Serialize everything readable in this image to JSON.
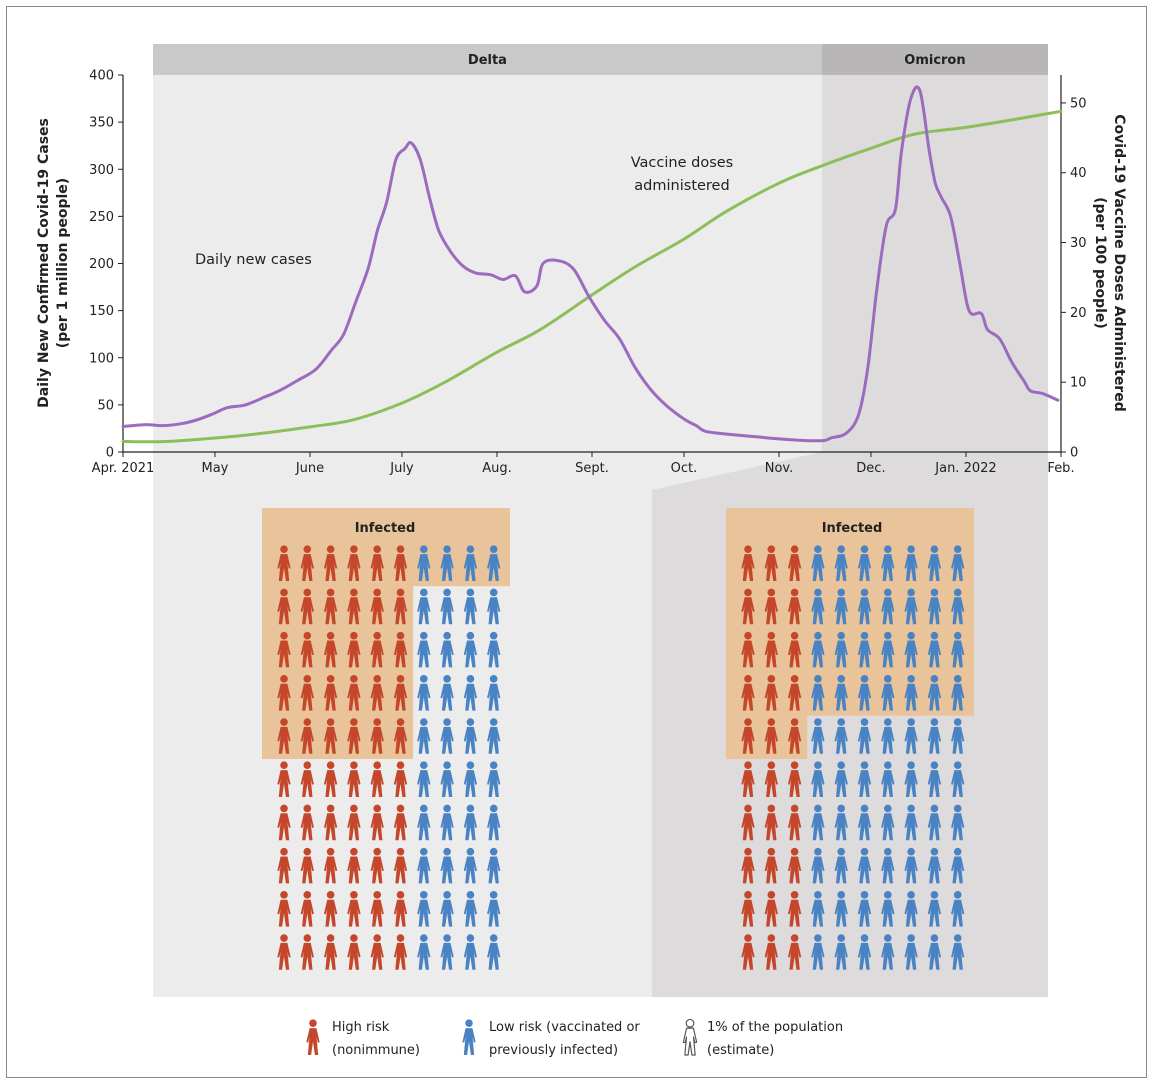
{
  "chart_data": {
    "type": "line",
    "title": "",
    "eras": [
      {
        "name": "Delta",
        "start": "2021-04-01",
        "end": "2021-11-15"
      },
      {
        "name": "Omicron",
        "start": "2021-11-15",
        "end": "2022-02-01"
      }
    ],
    "x_axis": {
      "type": "date",
      "range": [
        "2021-04-01",
        "2022-02-01"
      ],
      "tick_labels": [
        {
          "label": "Apr. 2021",
          "date": "2021-04-01"
        },
        {
          "label": "May",
          "date": "2021-05-01"
        },
        {
          "label": "June",
          "date": "2021-06-01"
        },
        {
          "label": "July",
          "date": "2021-07-01"
        },
        {
          "label": "Aug.",
          "date": "2021-08-01"
        },
        {
          "label": "Sept.",
          "date": "2021-09-01"
        },
        {
          "label": "Oct.",
          "date": "2021-10-01"
        },
        {
          "label": "Nov.",
          "date": "2021-11-01"
        },
        {
          "label": "Dec.",
          "date": "2021-12-01"
        },
        {
          "label": "Jan. 2022",
          "date": "2022-01-01"
        },
        {
          "label": "Feb.",
          "date": "2022-02-01"
        }
      ]
    },
    "y_left": {
      "label_line1": "Daily New Confirmed Covid-19 Cases",
      "label_line2": "(per 1 million people)",
      "ylim": [
        0,
        400
      ],
      "ticks": [
        0,
        50,
        100,
        150,
        200,
        250,
        300,
        350,
        400
      ]
    },
    "y_right": {
      "label_line1": "Covid-19 Vaccine Doses Administered",
      "label_line2": "(per 100 people)",
      "ylim": [
        0,
        54
      ],
      "ticks": [
        0,
        10,
        20,
        30,
        40,
        50
      ]
    },
    "series": [
      {
        "name": "Daily new cases",
        "axis": "left",
        "color": "#9b6bbf",
        "points": [
          [
            "2021-04-01",
            27
          ],
          [
            "2021-04-08",
            29
          ],
          [
            "2021-04-14",
            28
          ],
          [
            "2021-04-20",
            30
          ],
          [
            "2021-04-25",
            34
          ],
          [
            "2021-04-30",
            40
          ],
          [
            "2021-05-05",
            47
          ],
          [
            "2021-05-11",
            50
          ],
          [
            "2021-05-17",
            58
          ],
          [
            "2021-05-22",
            65
          ],
          [
            "2021-05-28",
            76
          ],
          [
            "2021-06-03",
            88
          ],
          [
            "2021-06-08",
            108
          ],
          [
            "2021-06-12",
            125
          ],
          [
            "2021-06-16",
            160
          ],
          [
            "2021-06-20",
            195
          ],
          [
            "2021-06-23",
            235
          ],
          [
            "2021-06-26",
            265
          ],
          [
            "2021-06-29",
            310
          ],
          [
            "2021-07-02",
            322
          ],
          [
            "2021-07-04",
            328
          ],
          [
            "2021-07-07",
            310
          ],
          [
            "2021-07-10",
            270
          ],
          [
            "2021-07-13",
            235
          ],
          [
            "2021-07-17",
            212
          ],
          [
            "2021-07-21",
            197
          ],
          [
            "2021-07-25",
            190
          ],
          [
            "2021-07-30",
            188
          ],
          [
            "2021-08-03",
            183
          ],
          [
            "2021-08-07",
            187
          ],
          [
            "2021-08-10",
            170
          ],
          [
            "2021-08-14",
            176
          ],
          [
            "2021-08-16",
            200
          ],
          [
            "2021-08-21",
            203
          ],
          [
            "2021-08-26",
            194
          ],
          [
            "2021-08-31",
            165
          ],
          [
            "2021-09-05",
            140
          ],
          [
            "2021-09-10",
            120
          ],
          [
            "2021-09-15",
            90
          ],
          [
            "2021-09-20",
            67
          ],
          [
            "2021-09-25",
            50
          ],
          [
            "2021-10-01",
            35
          ],
          [
            "2021-10-05",
            28
          ],
          [
            "2021-10-08",
            22
          ],
          [
            "2021-10-15",
            19
          ],
          [
            "2021-10-25",
            16
          ],
          [
            "2021-11-05",
            13
          ],
          [
            "2021-11-15",
            12
          ],
          [
            "2021-11-18",
            15
          ],
          [
            "2021-11-23",
            20
          ],
          [
            "2021-11-27",
            40
          ],
          [
            "2021-11-30",
            90
          ],
          [
            "2021-12-03",
            175
          ],
          [
            "2021-12-06",
            240
          ],
          [
            "2021-12-09",
            258
          ],
          [
            "2021-12-11",
            320
          ],
          [
            "2021-12-14",
            375
          ],
          [
            "2021-12-17",
            383
          ],
          [
            "2021-12-20",
            320
          ],
          [
            "2021-12-22",
            285
          ],
          [
            "2021-12-24",
            270
          ],
          [
            "2021-12-27",
            250
          ],
          [
            "2021-12-30",
            200
          ],
          [
            "2022-01-02",
            150
          ],
          [
            "2022-01-06",
            147
          ],
          [
            "2022-01-08",
            130
          ],
          [
            "2022-01-12",
            120
          ],
          [
            "2022-01-16",
            95
          ],
          [
            "2022-01-20",
            75
          ],
          [
            "2022-01-22",
            65
          ],
          [
            "2022-01-26",
            62
          ],
          [
            "2022-01-31",
            55
          ]
        ]
      },
      {
        "name": "Vaccine doses administered",
        "axis": "right",
        "color": "#8cbf5b",
        "points": [
          [
            "2021-04-01",
            1.5
          ],
          [
            "2021-04-15",
            1.5
          ],
          [
            "2021-05-01",
            2.0
          ],
          [
            "2021-05-15",
            2.6
          ],
          [
            "2021-06-01",
            3.6
          ],
          [
            "2021-06-15",
            4.6
          ],
          [
            "2021-07-01",
            7.0
          ],
          [
            "2021-07-15",
            10.0
          ],
          [
            "2021-08-01",
            14.3
          ],
          [
            "2021-08-15",
            17.5
          ],
          [
            "2021-09-01",
            22.5
          ],
          [
            "2021-09-15",
            26.5
          ],
          [
            "2021-10-01",
            30.5
          ],
          [
            "2021-10-15",
            34.5
          ],
          [
            "2021-11-01",
            38.5
          ],
          [
            "2021-11-15",
            41.0
          ],
          [
            "2021-12-01",
            43.5
          ],
          [
            "2021-12-15",
            45.5
          ],
          [
            "2022-01-01",
            46.5
          ],
          [
            "2022-01-15",
            47.5
          ],
          [
            "2022-02-01",
            48.8
          ]
        ]
      }
    ],
    "annotations": {
      "cases_label": "Daily new cases",
      "vaccine_label_line1": "Vaccine doses",
      "vaccine_label_line2": "administered"
    },
    "pictographs": [
      {
        "era": "Delta",
        "title": "Infected",
        "rows": 10,
        "cols": 10,
        "high_risk_cols": 6,
        "infected_full_rows": 1,
        "infected_high_risk_rows": 5,
        "infected_low_risk_rows": 1
      },
      {
        "era": "Omicron",
        "title": "Infected",
        "rows": 10,
        "cols": 10,
        "high_risk_cols": 3,
        "infected_full_rows": 4,
        "infected_high_risk_rows": 5,
        "infected_low_risk_rows": 4
      }
    ],
    "legend": [
      {
        "key": "high",
        "line1": "High risk",
        "line2": "(nonimmune)",
        "color": "#c5472b"
      },
      {
        "key": "low",
        "line1": "Low risk (vaccinated or",
        "line2": "previously infected)",
        "color": "#4a83c3"
      },
      {
        "key": "unit",
        "line1": "1% of the population",
        "line2": "(estimate)",
        "color": "#ffffff"
      }
    ],
    "colors": {
      "delta_band": "#c9c9c9",
      "omicron_band": "#b8b6b6",
      "delta_bg": "#ececec",
      "omicron_bg": "#dddbdb",
      "infected_fill": "#e9c49b"
    }
  }
}
